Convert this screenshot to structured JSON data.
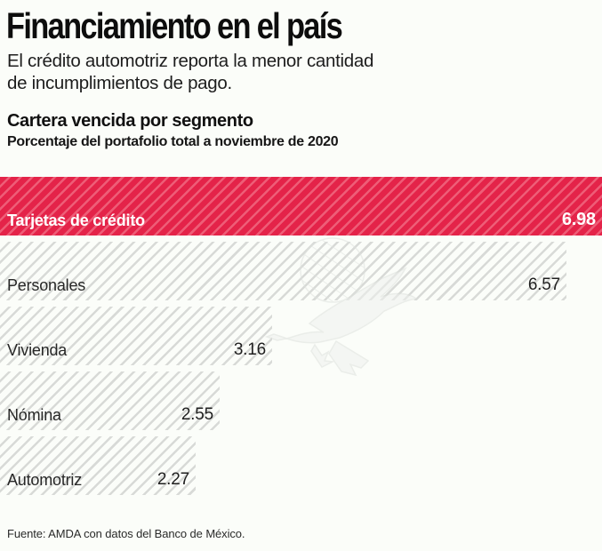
{
  "page": {
    "title": "Financiamiento en el país",
    "subtitle_line1": "El crédito automotriz reporta la menor cantidad",
    "subtitle_line2": "de incumplimientos de pago.",
    "source": "Fuente: AMDA con datos del Banco de México."
  },
  "chart": {
    "title": "Cartera vencida por segmento",
    "subtitle": "Porcentaje del portafolio total a noviembre de 2020"
  },
  "chart_data": {
    "type": "bar",
    "orientation": "horizontal",
    "title": "Cartera vencida por segmento",
    "subtitle": "Porcentaje del portafolio total a noviembre de 2020",
    "categories": [
      "Tarjetas de crédito",
      "Personales",
      "Vivienda",
      "Nómina",
      "Automotriz"
    ],
    "values": [
      6.98,
      6.57,
      3.16,
      2.55,
      2.27
    ],
    "value_format": "2-decimals",
    "unit": "percent of total portfolio",
    "xlim": [
      0,
      6.98
    ],
    "grid": false,
    "legend": false,
    "highlight_index": 0,
    "highlight_color": "#e42349",
    "bar_pattern": "diagonal-hatch",
    "hatch_color_gray": "#d8dad7",
    "value_label_position": "inside-right",
    "category_label_position": "inside-bottom-left"
  },
  "colors": {
    "accent_red": "#e42349",
    "accent_red_stripe": "#ee5d77",
    "hatch_gray": "#d8dad7",
    "background": "#fbfdf9",
    "text": "#1b1b1b"
  },
  "watermark": {
    "name": "amda-eagle-watermark",
    "description": "light gray eagle over globe sketch"
  }
}
